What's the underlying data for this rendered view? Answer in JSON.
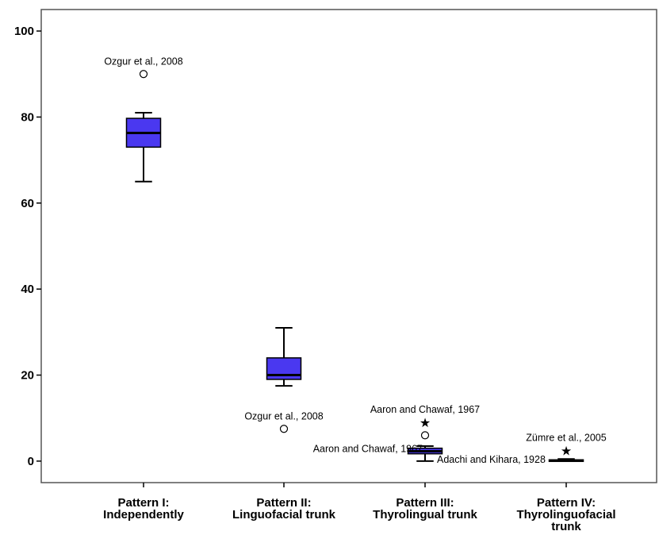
{
  "chart_data": {
    "type": "boxplot",
    "title": "",
    "xlabel": "",
    "ylabel": "",
    "ylim": [
      -5,
      105
    ],
    "yticks": [
      0,
      20,
      40,
      60,
      80,
      100
    ],
    "grid": false,
    "box_color": "#4a38f0",
    "categories": [
      {
        "label_lines": [
          "Pattern I:",
          "Independently"
        ]
      },
      {
        "label_lines": [
          "Pattern II:",
          "Linguofacial trunk"
        ]
      },
      {
        "label_lines": [
          "Pattern III:",
          "Thyrolingual trunk"
        ]
      },
      {
        "label_lines": [
          "Pattern IV:",
          "Thyrolinguofacial",
          "trunk"
        ]
      }
    ],
    "boxes": [
      {
        "category": 0,
        "whisker_low": 65,
        "q1": 73,
        "median": 76.3,
        "q3": 79.7,
        "whisker_high": 81
      },
      {
        "category": 1,
        "whisker_low": 17.5,
        "q1": 19,
        "median": 20,
        "q3": 24,
        "whisker_high": 31
      },
      {
        "category": 2,
        "whisker_low": 0,
        "q1": 1.7,
        "median": 2.3,
        "q3": 3,
        "whisker_high": 3.5
      },
      {
        "category": 3,
        "whisker_low": 0,
        "q1": 0,
        "median": 0.1,
        "q3": 0.3,
        "whisker_high": 0.5
      }
    ],
    "outliers": [
      {
        "category": 0,
        "value": 90,
        "marker": "circle",
        "label": "Ozgur et al., 2008",
        "label_pos": "above"
      },
      {
        "category": 1,
        "value": 7.5,
        "marker": "circle",
        "label": "Ozgur et al., 2008",
        "label_pos": "above"
      },
      {
        "category": 2,
        "value": 9,
        "marker": "star",
        "label": "Aaron and Chawaf, 1967",
        "label_pos": "above"
      },
      {
        "category": 2,
        "value": 6,
        "marker": "circle",
        "label": "Aaron and Chawaf, 1967",
        "label_pos": "left-below"
      },
      {
        "category": 2,
        "value": 0,
        "marker": "none",
        "label": "Adachi and Kihara, 1928",
        "label_pos": "right"
      },
      {
        "category": 3,
        "value": 2.5,
        "marker": "star",
        "label": "Zümre et al., 2005",
        "label_pos": "above"
      }
    ]
  }
}
